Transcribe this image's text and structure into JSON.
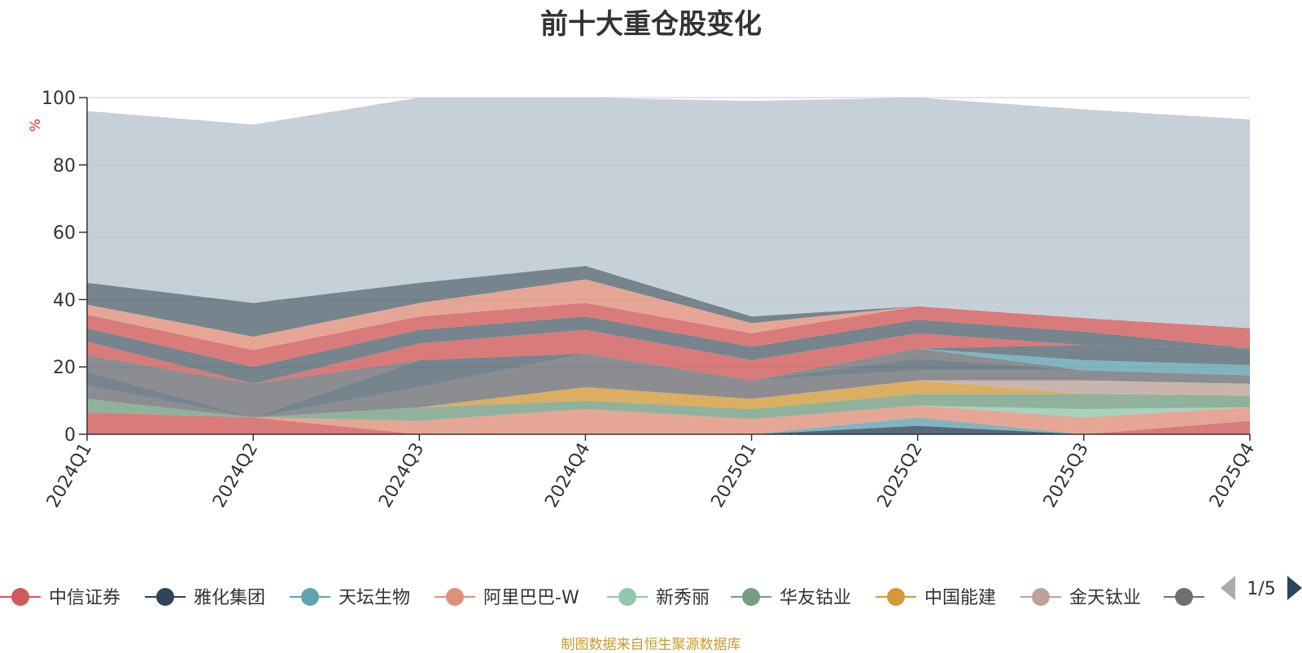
{
  "chart_data": {
    "type": "area",
    "title": "前十大重仓股变化",
    "ylabel": "%",
    "ylim": [
      0,
      100
    ],
    "y_ticks": [
      "0",
      "20",
      "40",
      "60",
      "80",
      "100"
    ],
    "grid": true,
    "stacked": true,
    "categories": [
      "2024Q1",
      "2024Q2",
      "2024Q3",
      "2024Q4",
      "2025Q1",
      "2025Q2",
      "2025Q3",
      "2025Q4"
    ],
    "series": [
      {
        "name": "中信证券",
        "color": "#d05a5a",
        "values": [
          6.5,
          5,
          0,
          0,
          0,
          0,
          0,
          4
        ]
      },
      {
        "name": "雅化集团",
        "color": "#2e4457",
        "values": [
          0,
          0,
          0,
          0,
          0,
          2.5,
          0,
          0
        ]
      },
      {
        "name": "天坛生物",
        "color": "#60a3b0",
        "values": [
          0,
          0,
          0,
          0,
          0,
          2.5,
          0,
          0
        ]
      },
      {
        "name": "阿里巴巴-W",
        "color": "#e0907a",
        "values": [
          0,
          0,
          4,
          7.5,
          4.5,
          3.5,
          5,
          4
        ]
      },
      {
        "name": "新秀丽",
        "color": "#91c7ae",
        "values": [
          0,
          0,
          0,
          0,
          0,
          0,
          2.5,
          0
        ]
      },
      {
        "name": "华友钴业",
        "color": "#749f83",
        "values": [
          4,
          0,
          4,
          2.5,
          3,
          3.5,
          4.5,
          3.5
        ]
      },
      {
        "name": "中国能建",
        "color": "#d39a3a",
        "values": [
          0,
          0,
          0,
          4,
          3,
          4,
          0,
          0
        ]
      },
      {
        "name": "金天钛业",
        "color": "#bda29a",
        "values": [
          0,
          0,
          0,
          0,
          0,
          0,
          4,
          3.5
        ]
      },
      {
        "name": "",
        "color": "#6e7074",
        "values": [
          4,
          0,
          6,
          10,
          5.5,
          3,
          3,
          2.5
        ]
      },
      {
        "name": "",
        "color": "#546570",
        "values": [
          4,
          0,
          8,
          0,
          0,
          3.5,
          0,
          0
        ]
      },
      {
        "name": "",
        "color": "#6e7074",
        "values": [
          5,
          10,
          0,
          0,
          0,
          3,
          0,
          0
        ]
      },
      {
        "name": "",
        "color": "#60a3b0",
        "values": [
          0,
          0,
          0,
          0,
          0,
          0,
          3,
          3
        ]
      },
      {
        "name": "",
        "color": "#546570",
        "values": [
          0,
          0,
          0,
          0,
          0,
          0,
          4.5,
          5
        ]
      },
      {
        "name": "",
        "color": "#d05a5a",
        "values": [
          4,
          0,
          5,
          7,
          6,
          4.5,
          0,
          0
        ]
      },
      {
        "name": "",
        "color": "#546570",
        "values": [
          4,
          5,
          4,
          4,
          4,
          4,
          4,
          0
        ]
      },
      {
        "name": "",
        "color": "#d05a5a",
        "values": [
          4,
          5,
          4,
          4,
          4,
          4,
          4,
          6
        ]
      },
      {
        "name": "",
        "color": "#e0907a",
        "values": [
          3,
          4,
          4,
          7,
          3,
          0,
          0,
          0
        ]
      },
      {
        "name": "",
        "color": "#546570",
        "values": [
          6.5,
          10,
          6,
          4,
          2,
          0,
          0,
          0
        ]
      },
      {
        "name": "",
        "color": "#b7c4cf",
        "values": [
          51,
          53,
          55,
          50,
          64,
          62,
          62,
          62
        ]
      }
    ]
  },
  "legend": {
    "page_indicator": "1/5"
  },
  "footer": {
    "source_text": "制图数据来自恒生聚源数据库"
  }
}
